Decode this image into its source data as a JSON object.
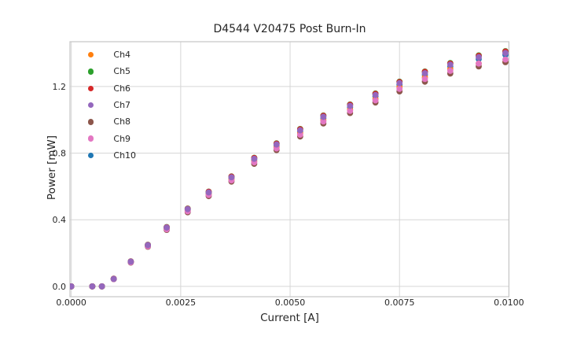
{
  "chart_data": {
    "type": "scatter",
    "title": "D4544 V20475 Post Burn-In",
    "xlabel": "Current [A]",
    "ylabel": "Power [mW]",
    "x_tick_labels": [
      "0.0000",
      "0.0025",
      "0.0050",
      "0.0075",
      "0.0100"
    ],
    "x_tick_values": [
      0.0,
      0.0025,
      0.005,
      0.0075,
      0.01
    ],
    "y_tick_labels": [
      "0.0",
      "0.4",
      "0.8",
      "1.2"
    ],
    "y_tick_values": [
      0.0,
      0.4,
      0.8,
      1.2
    ],
    "xlim": [
      -3e-05,
      0.01
    ],
    "ylim": [
      -0.062,
      1.469
    ],
    "grid": true,
    "legend_position": "upper-left",
    "marker": "circle",
    "marker_radius_px": 3.9,
    "text_color": "#262626",
    "grid_color": "#d6d6d6",
    "spine_color": "#c6c6c6",
    "background_color": "#ffffff",
    "x": [
      0.0,
      0.00048,
      0.0007,
      0.00097,
      0.00136,
      0.00175,
      0.00218,
      0.00266,
      0.00314,
      0.00366,
      0.00418,
      0.00469,
      0.00523,
      0.00576,
      0.00637,
      0.00695,
      0.0075,
      0.00808,
      0.00866,
      0.00931,
      0.00992
    ],
    "series": [
      {
        "name": "Ch4",
        "color": "#ff7f0e",
        "values": [
          0,
          0,
          0,
          0.044,
          0.146,
          0.243,
          0.346,
          0.454,
          0.553,
          0.642,
          0.751,
          0.835,
          0.919,
          0.998,
          1.062,
          1.126,
          1.196,
          1.255,
          1.304,
          1.338,
          1.348
        ]
      },
      {
        "name": "Ch5",
        "color": "#2ca02c",
        "values": [
          0,
          0,
          0,
          0.046,
          0.15,
          0.25,
          0.356,
          0.467,
          0.569,
          0.66,
          0.772,
          0.859,
          0.945,
          1.026,
          1.092,
          1.158,
          1.229,
          1.29,
          1.341,
          1.387,
          1.412
        ]
      },
      {
        "name": "Ch6",
        "color": "#d62728",
        "values": [
          0,
          0,
          0,
          0.046,
          0.15,
          0.249,
          0.355,
          0.466,
          0.568,
          0.659,
          0.771,
          0.857,
          0.943,
          1.024,
          1.09,
          1.156,
          1.227,
          1.288,
          1.338,
          1.384,
          1.41
        ]
      },
      {
        "name": "Ch7",
        "color": "#9467bd",
        "values": [
          0,
          0,
          0,
          0.045,
          0.149,
          0.248,
          0.353,
          0.464,
          0.564,
          0.655,
          0.766,
          0.852,
          0.937,
          1.018,
          1.084,
          1.149,
          1.22,
          1.28,
          1.331,
          1.376,
          1.401
        ]
      },
      {
        "name": "Ch8",
        "color": "#8c564b",
        "values": [
          0,
          0,
          0,
          0.044,
          0.143,
          0.238,
          0.339,
          0.445,
          0.542,
          0.629,
          0.736,
          0.818,
          0.9,
          0.978,
          1.041,
          1.104,
          1.171,
          1.229,
          1.278,
          1.321,
          1.346
        ]
      },
      {
        "name": "Ch9",
        "color": "#e377c2",
        "values": [
          0,
          0,
          0,
          0.044,
          0.145,
          0.241,
          0.343,
          0.451,
          0.549,
          0.637,
          0.745,
          0.828,
          0.911,
          0.99,
          1.054,
          1.117,
          1.186,
          1.245,
          1.294,
          1.338,
          1.362
        ]
      },
      {
        "name": "Ch10",
        "color": "#1f77b4",
        "values": [
          0,
          0,
          0,
          0.045,
          0.148,
          0.246,
          0.35,
          0.46,
          0.56,
          0.65,
          0.76,
          0.845,
          0.93,
          1.01,
          1.075,
          1.14,
          1.21,
          1.27,
          1.32,
          1.365,
          1.39
        ]
      }
    ],
    "draw_order": [
      "Ch10",
      "Ch4",
      "Ch8",
      "Ch9",
      "Ch5",
      "Ch6",
      "Ch7"
    ]
  }
}
